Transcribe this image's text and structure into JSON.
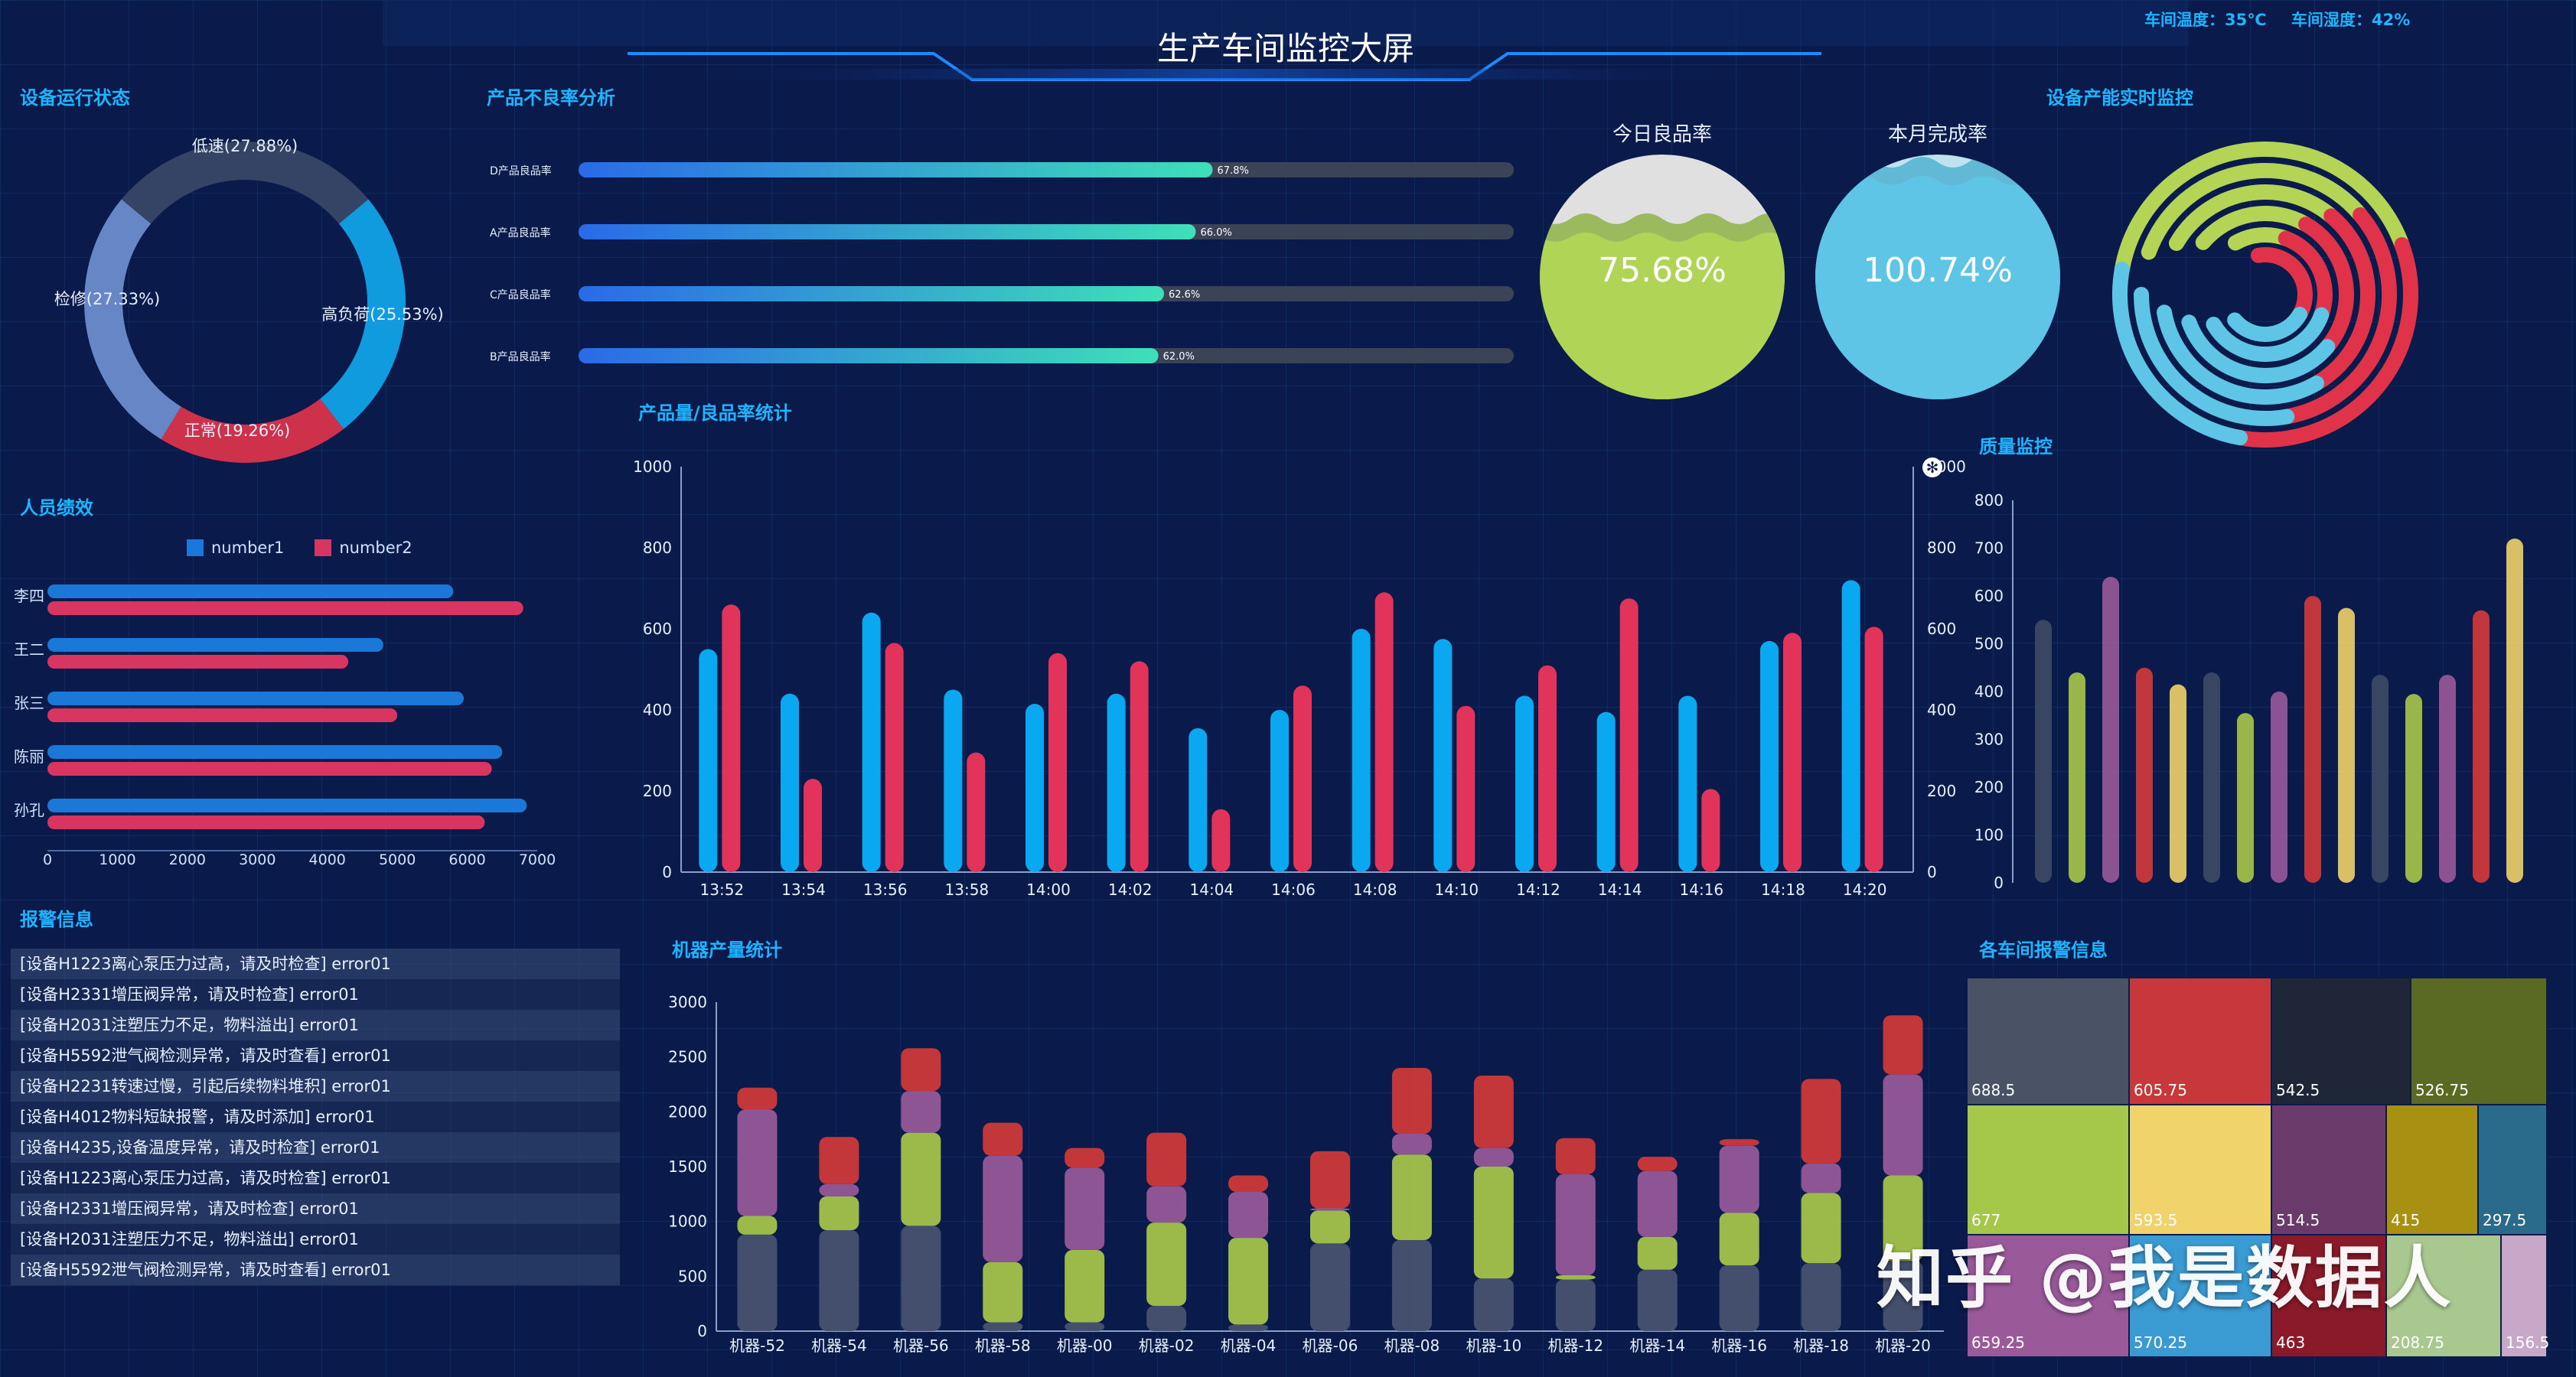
{
  "header": {
    "title": "生产车间监控大屏",
    "temp": "车间温度：35℃",
    "humidity": "车间湿度：42%"
  },
  "sections": {
    "device_status": "设备运行状态",
    "defect_analysis": "产品不良率分析",
    "capacity_monitor": "设备产能实时监控",
    "staff_performance": "人员绩效",
    "output_stats": "产品量/良品率统计",
    "quality_monitor": "质量监控",
    "alarms": "报警信息",
    "machine_output": "机器产量统计",
    "workshop_alarms": "各车间报警信息"
  },
  "colors": {
    "title_blue": "#1fb4ff",
    "bar_blue": "#0aa8f0",
    "bar_red": "#e2335a",
    "lime": "#b4d455",
    "sky": "#5ec5e6",
    "purple": "#9a5a9a"
  },
  "chart_data": [
    {
      "type": "pie",
      "name": "device_status",
      "labels": [
        "低速(27.88%)",
        "高负荷(25.53%)",
        "正常(19.26%)",
        "检修(27.33%)"
      ],
      "values": [
        27.88,
        25.53,
        19.26,
        27.33
      ],
      "colors": [
        "#3a4766",
        "#12a6ec",
        "#e0334a",
        "#6f8fd0"
      ]
    },
    {
      "type": "bar",
      "name": "defect_rate",
      "categories": [
        "D产品良品率",
        "A产品良品率",
        "C产品良品率",
        "B产品良品率"
      ],
      "values": [
        67.8,
        66.0,
        62.6,
        62.0
      ],
      "value_labels": [
        "67.8%",
        "66.0%",
        "62.6%",
        "62.0%"
      ],
      "xlim": [
        0,
        100
      ]
    },
    {
      "type": "area",
      "name": "liquid_fill",
      "items": [
        {
          "title": "今日良品率",
          "value": 75.68,
          "label": "75.68%"
        },
        {
          "title": "本月完成率",
          "value": 100.74,
          "label": "100.74%"
        }
      ]
    },
    {
      "type": "pie",
      "name": "capacity_rings",
      "rings": [
        {
          "color": "#b4d455",
          "values": [
            0.55,
            0.45
          ]
        },
        {
          "color": "#e0334a",
          "values": [
            0.42,
            0.58
          ]
        },
        {
          "color": "#5ec5e6",
          "values": [
            0.48,
            0.52
          ]
        }
      ]
    },
    {
      "type": "bar",
      "name": "staff_performance",
      "categories": [
        "李四",
        "王二",
        "张三",
        "陈丽",
        "孙孔"
      ],
      "series": [
        {
          "name": "number1",
          "values": [
            5800,
            4800,
            5950,
            6500,
            6850
          ]
        },
        {
          "name": "number2",
          "values": [
            6800,
            4300,
            5000,
            6350,
            6250
          ]
        }
      ],
      "xticks": [
        "0",
        "1000",
        "2000",
        "3000",
        "4000",
        "5000",
        "6000",
        "7000"
      ],
      "xlim": [
        0,
        7000
      ]
    },
    {
      "type": "bar",
      "name": "output_yield",
      "categories": [
        "13:52",
        "13:54",
        "13:56",
        "13:58",
        "14:00",
        "14:02",
        "14:04",
        "14:06",
        "14:08",
        "14:10",
        "14:12",
        "14:14",
        "14:16",
        "14:18",
        "14:20"
      ],
      "series": [
        {
          "name": "blue",
          "values": [
            550,
            440,
            640,
            450,
            415,
            440,
            355,
            400,
            600,
            575,
            435,
            395,
            435,
            570,
            720
          ]
        },
        {
          "name": "red",
          "values": [
            660,
            230,
            565,
            295,
            540,
            520,
            155,
            460,
            690,
            410,
            510,
            675,
            205,
            590,
            605
          ]
        }
      ],
      "yticks": [
        "0",
        "200",
        "400",
        "600",
        "800",
        "1000"
      ],
      "ylim": [
        0,
        1000
      ],
      "y2ticks": [
        "0",
        "200",
        "400",
        "600",
        "800",
        "1000"
      ]
    },
    {
      "type": "bar",
      "name": "quality_monitor",
      "values": [
        550,
        440,
        640,
        450,
        415,
        440,
        355,
        400,
        600,
        575,
        435,
        395,
        435,
        570,
        720
      ],
      "colors": [
        "#3d4a66",
        "#a8c84a",
        "#9a5a9a",
        "#d43a3a",
        "#f0d36a",
        "#3d4a66",
        "#a8c84a",
        "#9a5a9a",
        "#d43a3a",
        "#f0d36a",
        "#3d4a66",
        "#a8c84a",
        "#9a5a9a",
        "#d43a3a",
        "#f0d36a"
      ],
      "yticks": [
        "0",
        "100",
        "200",
        "300",
        "400",
        "500",
        "600",
        "700",
        "800"
      ],
      "ylim": [
        0,
        800
      ]
    },
    {
      "type": "bar",
      "name": "machine_output",
      "categories": [
        "机器-52",
        "机器-54",
        "机器-56",
        "机器-58",
        "机器-00",
        "机器-02",
        "机器-04",
        "机器-06",
        "机器-08",
        "机器-10",
        "机器-12",
        "机器-14",
        "机器-16",
        "机器-18",
        "机器-20"
      ],
      "series": [
        {
          "name": "gray",
          "values": [
            880,
            920,
            960,
            80,
            80,
            230,
            60,
            800,
            830,
            480,
            470,
            560,
            600,
            620,
            640
          ]
        },
        {
          "name": "lime",
          "values": [
            170,
            310,
            850,
            550,
            660,
            760,
            790,
            300,
            780,
            1020,
            40,
            300,
            480,
            640,
            780
          ]
        },
        {
          "name": "purple",
          "values": [
            970,
            110,
            380,
            970,
            750,
            330,
            420,
            20,
            190,
            170,
            920,
            600,
            610,
            270,
            920
          ]
        },
        {
          "name": "red",
          "values": [
            200,
            430,
            390,
            300,
            180,
            490,
            150,
            520,
            600,
            660,
            330,
            130,
            60,
            770,
            540
          ]
        }
      ],
      "yticks": [
        "0",
        "500",
        "1000",
        "1500",
        "2000",
        "2500",
        "3000"
      ],
      "ylim": [
        0,
        3000
      ]
    },
    {
      "type": "heatmap",
      "name": "workshop_alarms",
      "cells": [
        {
          "label": "688.5",
          "color": "#4a5266"
        },
        {
          "label": "605.75",
          "color": "#c8383a"
        },
        {
          "label": "542.5",
          "color": "#1e2638"
        },
        {
          "label": "526.75",
          "color": "#5a6a22"
        },
        {
          "label": "677",
          "color": "#a6c84a"
        },
        {
          "label": "593.5",
          "color": "#f0d36a"
        },
        {
          "label": "514.5",
          "color": "#6a3a6a"
        },
        {
          "label": "415",
          "color": "#a89012"
        },
        {
          "label": "297.5",
          "color": "#2a6a8a"
        },
        {
          "label": "659.25",
          "color": "#9a5a9a"
        },
        {
          "label": "570.25",
          "color": "#3a9ad2"
        },
        {
          "label": "463",
          "color": "#8a1a2a"
        },
        {
          "label": "208.75",
          "color": "#a8c890"
        },
        {
          "label": "156.5",
          "color": "#c8a8c8"
        }
      ]
    }
  ],
  "alarms": [
    "[设备H1223离心泵压力过高，请及时检查] error01",
    "[设备H2331增压阀异常，请及时检查] error01",
    "[设备H2031注塑压力不足，物料溢出] error01",
    "[设备H5592泄气阀检测异常，请及时查看] error01",
    "[设备H2231转速过慢，引起后续物料堆积] error01",
    "[设备H4012物料短缺报警，请及时添加] error01",
    "[设备H4235,设备温度异常，请及时检查] error01",
    "[设备H1223离心泵压力过高，请及时检查] error01",
    "[设备H2331增压阀异常，请及时检查] error01",
    "[设备H2031注塑压力不足，物料溢出] error01",
    "[设备H5592泄气阀检测异常，请及时查看] error01"
  ],
  "watermark": "知乎 @我是数据人"
}
